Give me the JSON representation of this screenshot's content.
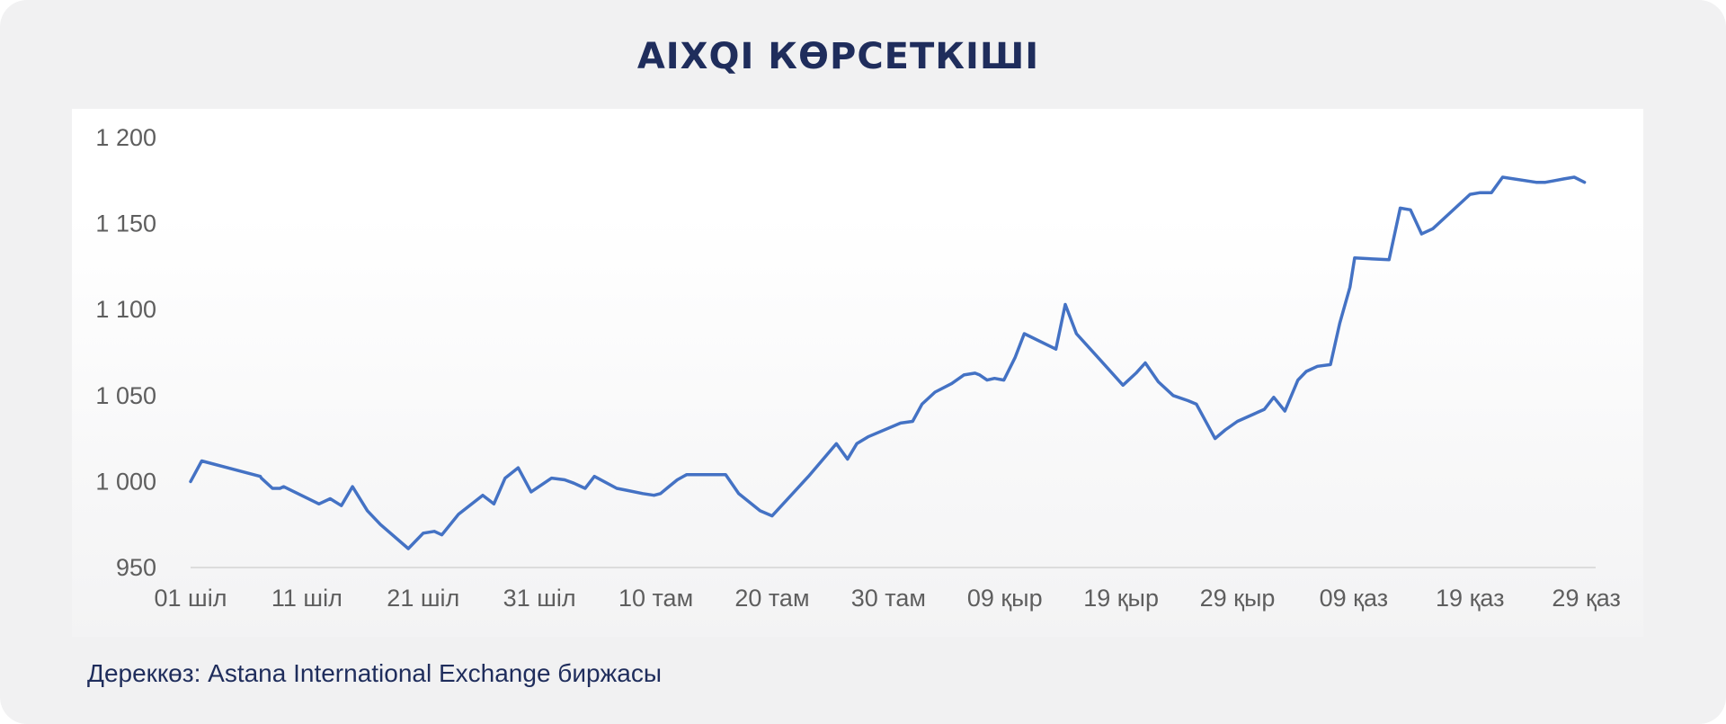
{
  "title": "AIXQI КӨРСЕТКІШІ",
  "source": "Дереккөз: Astana International Exchange биржасы",
  "colors": {
    "background": "#f1f1f2",
    "title": "#1f2d5c",
    "line": "#4472c4",
    "axis_text": "#5e5e5e"
  },
  "chart_data": {
    "type": "line",
    "title": "AIXQI КӨРСЕТКІШІ",
    "xlabel": "",
    "ylabel": "",
    "ylim": [
      950,
      1200
    ],
    "yticks": [
      950,
      1000,
      1050,
      1100,
      1150,
      1200
    ],
    "ytick_labels": [
      "950",
      "1 000",
      "1 050",
      "1 100",
      "1 150",
      "1 200"
    ],
    "xlim": [
      0,
      151
    ],
    "xticks": [
      0,
      12.5,
      25,
      37.5,
      50,
      62.5,
      75,
      87.5,
      100,
      112.5,
      125,
      137.5,
      150
    ],
    "xtick_labels": [
      "01 шіл",
      "11 шіл",
      "21 шіл",
      "31 шіл",
      "10 там",
      "20 там",
      "30 там",
      "09 қыр",
      "19 қыр",
      "29 қыр",
      "09 қаз",
      "19 қаз",
      "29 қаз"
    ],
    "grid": false,
    "legend": "none",
    "series": [
      {
        "x": [
          0,
          1.2,
          7.5,
          7.6,
          8.8,
          9.6,
          10,
          13.8,
          15,
          16.2,
          17.4,
          19,
          20.4,
          23.4,
          25,
          26.2,
          27,
          28.8,
          31.4,
          32.6,
          33.8,
          35.2,
          36.6,
          38.8,
          40.2,
          41.2,
          42.4,
          43.4,
          45.8,
          46.8,
          48.6,
          49.8,
          50.5,
          51.4,
          52.3,
          53.3,
          57.5,
          58.9,
          61.2,
          62.5,
          66.4,
          69.4,
          70.6,
          71.6,
          72.8,
          76.3,
          77.6,
          78.6,
          80,
          81.8,
          83.1,
          84.3,
          84.8,
          85.6,
          86.4,
          87.4,
          88.6,
          89.6,
          93,
          94,
          95.2,
          97.7,
          100.2,
          101.6,
          102.6,
          104,
          105.6,
          107.2,
          108.1,
          110.1,
          111.2,
          112.5,
          115.4,
          116.4,
          117.6,
          119,
          119.9,
          121.1,
          122.5,
          123.5,
          124.6,
          125.1,
          128.8,
          130,
          131.1,
          132.3,
          133.5,
          137.5,
          138.6,
          139.8,
          141,
          144.6,
          145.6,
          146.6,
          147.6,
          148.7,
          149.8
        ],
        "values": [
          1000,
          1012,
          1003,
          1002,
          996,
          996,
          997,
          987,
          990,
          986,
          997,
          983,
          975,
          961,
          970,
          971,
          969,
          981,
          992,
          987,
          1002,
          1008,
          994,
          1002,
          1001,
          999,
          996,
          1003,
          996,
          995,
          993,
          992,
          993,
          997,
          1001,
          1004,
          1004,
          993,
          983,
          980,
          1003,
          1022,
          1013,
          1022,
          1026,
          1034,
          1035,
          1045,
          1052,
          1057,
          1062,
          1063,
          1062,
          1059,
          1060,
          1059,
          1072,
          1086,
          1077,
          1103,
          1086,
          1071,
          1056,
          1063,
          1069,
          1058,
          1050,
          1047,
          1045,
          1025,
          1030,
          1035,
          1042,
          1049,
          1041,
          1059,
          1064,
          1067,
          1068,
          1092,
          1113,
          1130,
          1129,
          1159,
          1158,
          1144,
          1147,
          1167,
          1168,
          1168,
          1177,
          1174,
          1174,
          1175,
          1176,
          1177,
          1174
        ]
      }
    ]
  }
}
